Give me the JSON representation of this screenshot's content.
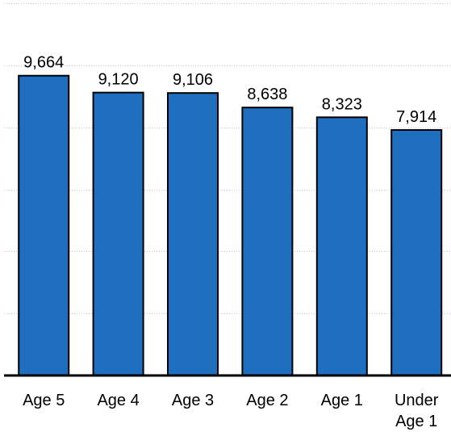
{
  "chart_data": {
    "type": "bar",
    "title": "",
    "xlabel": "",
    "ylabel": "",
    "categories": [
      "Age 5",
      "Age 4",
      "Age 3",
      "Age 2",
      "Age 1",
      "Under Age 1"
    ],
    "values": [
      9664,
      9120,
      9106,
      8638,
      8323,
      7914
    ],
    "value_labels": [
      "9,664",
      "9,120",
      "9,106",
      "8,638",
      "8,323",
      "7,914"
    ],
    "ylim": [
      0,
      12000
    ],
    "grid": true,
    "legend": "none",
    "bar_color": "#1f6fc0",
    "bar_outline_color": "#000000"
  }
}
